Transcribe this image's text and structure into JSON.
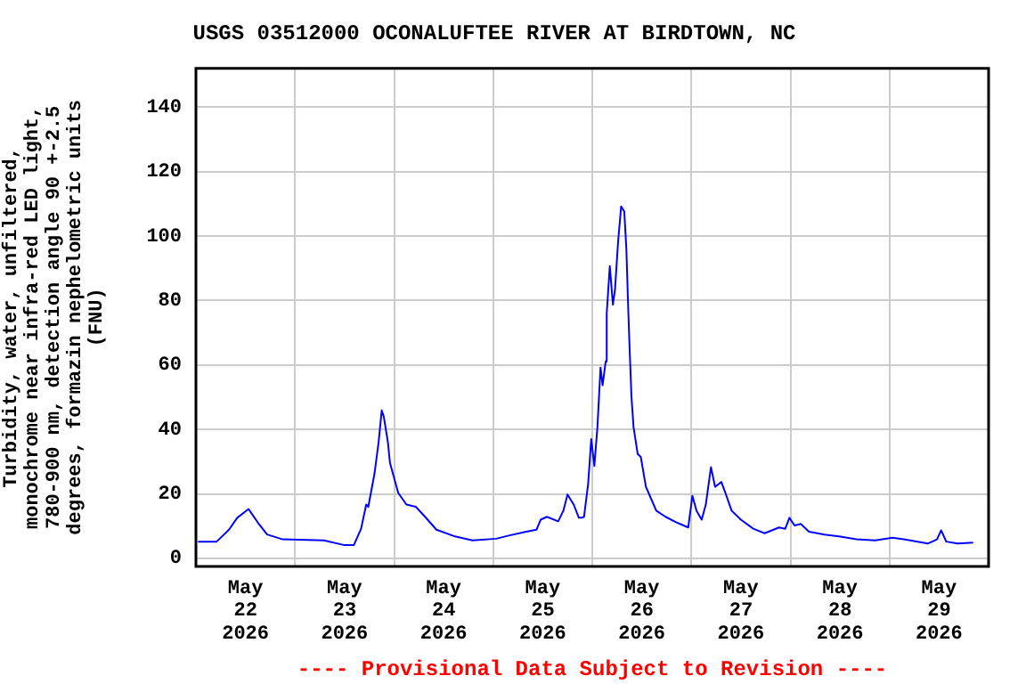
{
  "chart_data": {
    "type": "line",
    "title": "USGS 03512000 OCONALUFTEE RIVER AT BIRDTOWN, NC",
    "ylabel": "Turbidity, water, unfiltered, monochrome near infra-red LED light, 780-900 nm, detection angle 90 +-2.5 degrees, formazin nephelometric units (FNU)",
    "annotations": [
      "---- Provisional Data Subject to Revision ----"
    ],
    "color": "#0000ff",
    "x": [
      "2026-05-22T00:30",
      "2026-05-22T05:00",
      "2026-05-22T08:00",
      "2026-05-22T10:00",
      "2026-05-22T12:45",
      "2026-05-22T15:00",
      "2026-05-22T17:15",
      "2026-05-22T21:00",
      "2026-05-23T07:00",
      "2026-05-23T12:00",
      "2026-05-23T14:15",
      "2026-05-23T16:00",
      "2026-05-23T17:15",
      "2026-05-23T17:45",
      "2026-05-23T19:15",
      "2026-05-23T20:15",
      "2026-05-23T21:00",
      "2026-05-23T21:30",
      "2026-05-23T22:30",
      "2026-05-23T23:00",
      "2026-05-24T01:00",
      "2026-05-24T03:00",
      "2026-05-24T05:15",
      "2026-05-24T07:30",
      "2026-05-24T10:15",
      "2026-05-24T14:45",
      "2026-05-24T19:00",
      "2026-05-25T00:45",
      "2026-05-25T03:30",
      "2026-05-25T08:00",
      "2026-05-25T10:30",
      "2026-05-25T11:30",
      "2026-05-25T13:00",
      "2026-05-25T15:45",
      "2026-05-25T17:00",
      "2026-05-25T18:00",
      "2026-05-25T19:30",
      "2026-05-25T20:45",
      "2026-05-25T21:30",
      "2026-05-25T22:00",
      "2026-05-25T23:00",
      "2026-05-25T23:45",
      "2026-05-26T00:30",
      "2026-05-26T01:15",
      "2026-05-26T02:00",
      "2026-05-26T02:30",
      "2026-05-26T03:15",
      "2026-05-26T03:30",
      "2026-05-26T04:15",
      "2026-05-26T05:00",
      "2026-05-26T05:30",
      "2026-05-26T06:15",
      "2026-05-26T07:00",
      "2026-05-26T07:45",
      "2026-05-26T08:15",
      "2026-05-26T08:45",
      "2026-05-26T09:00",
      "2026-05-26T09:30",
      "2026-05-26T10:00",
      "2026-05-26T11:00",
      "2026-05-26T11:45",
      "2026-05-26T12:30",
      "2026-05-26T13:00",
      "2026-05-26T14:15",
      "2026-05-26T15:30",
      "2026-05-26T17:45",
      "2026-05-26T20:30",
      "2026-05-26T23:15",
      "2026-05-27T00:15",
      "2026-05-27T01:15",
      "2026-05-27T02:30",
      "2026-05-27T03:30",
      "2026-05-27T04:45",
      "2026-05-27T05:45",
      "2026-05-27T07:15",
      "2026-05-27T08:15",
      "2026-05-27T09:45",
      "2026-05-27T12:00",
      "2026-05-27T15:00",
      "2026-05-27T17:45",
      "2026-05-27T21:15",
      "2026-05-27T22:45",
      "2026-05-27T23:45",
      "2026-05-28T01:00",
      "2026-05-28T02:30",
      "2026-05-28T04:30",
      "2026-05-28T08:15",
      "2026-05-28T11:45",
      "2026-05-28T16:00",
      "2026-05-28T20:30",
      "2026-05-29T00:45",
      "2026-05-29T05:00",
      "2026-05-29T09:15",
      "2026-05-29T11:30",
      "2026-05-29T12:30",
      "2026-05-29T13:45",
      "2026-05-29T16:30",
      "2026-05-29T20:15"
    ],
    "values": [
      5.2,
      5.2,
      8.9,
      12.6,
      15.3,
      11.1,
      7.4,
      5.9,
      5.6,
      4.1,
      4.1,
      9.2,
      16.7,
      16,
      26.3,
      36.1,
      45.9,
      44,
      36,
      29.6,
      20.3,
      16.7,
      16,
      12.9,
      8.9,
      6.8,
      5.6,
      6.1,
      7,
      8.3,
      8.9,
      12,
      12.9,
      11.5,
      14.8,
      19.8,
      16.7,
      12.6,
      12.6,
      12.9,
      23.1,
      37,
      28.7,
      40.7,
      59.2,
      53.7,
      61.1,
      75.9,
      90.7,
      78.7,
      83.3,
      98.1,
      109.2,
      107.6,
      96.3,
      75.9,
      66.7,
      50,
      40.7,
      32.4,
      31.5,
      25.9,
      22.2,
      18.5,
      14.8,
      12.9,
      11.1,
      9.6,
      19.4,
      14.8,
      12,
      16.7,
      28.3,
      22.2,
      23.7,
      20.3,
      14.8,
      12,
      9.2,
      7.8,
      9.6,
      9.2,
      12.6,
      10.2,
      10.7,
      8.3,
      7.4,
      6.8,
      5.9,
      5.6,
      6.4,
      5.6,
      4.6,
      5.9,
      8.7,
      5.2,
      4.6,
      4.9
    ],
    "xlim": [
      "2026-05-22T00:00",
      "2026-05-30T00:00"
    ],
    "xticks": [
      {
        "value": "2026-05-22T12:00",
        "label": "May 22 2026"
      },
      {
        "value": "2026-05-23T00:00",
        "label": null
      },
      {
        "value": "2026-05-23T12:00",
        "label": "May 23 2026"
      },
      {
        "value": "2026-05-24T00:00",
        "label": null
      },
      {
        "value": "2026-05-24T12:00",
        "label": "May 24 2026"
      },
      {
        "value": "2026-05-25T00:00",
        "label": null
      },
      {
        "value": "2026-05-25T12:00",
        "label": "May 25 2026"
      },
      {
        "value": "2026-05-26T00:00",
        "label": null
      },
      {
        "value": "2026-05-26T12:00",
        "label": "May 26 2026"
      },
      {
        "value": "2026-05-27T00:00",
        "label": null
      },
      {
        "value": "2026-05-27T12:00",
        "label": "May 27 2026"
      },
      {
        "value": "2026-05-28T00:00",
        "label": null
      },
      {
        "value": "2026-05-28T12:00",
        "label": "May 28 2026"
      },
      {
        "value": "2026-05-29T00:00",
        "label": null
      },
      {
        "value": "2026-05-29T12:00",
        "label": "May 29 2026"
      }
    ],
    "ylim": [
      -2.5,
      152
    ],
    "yticks": [
      0,
      20,
      40,
      60,
      80,
      100,
      120,
      140
    ],
    "grid": true,
    "legend": false,
    "marker": "none",
    "line_style": "solid"
  }
}
